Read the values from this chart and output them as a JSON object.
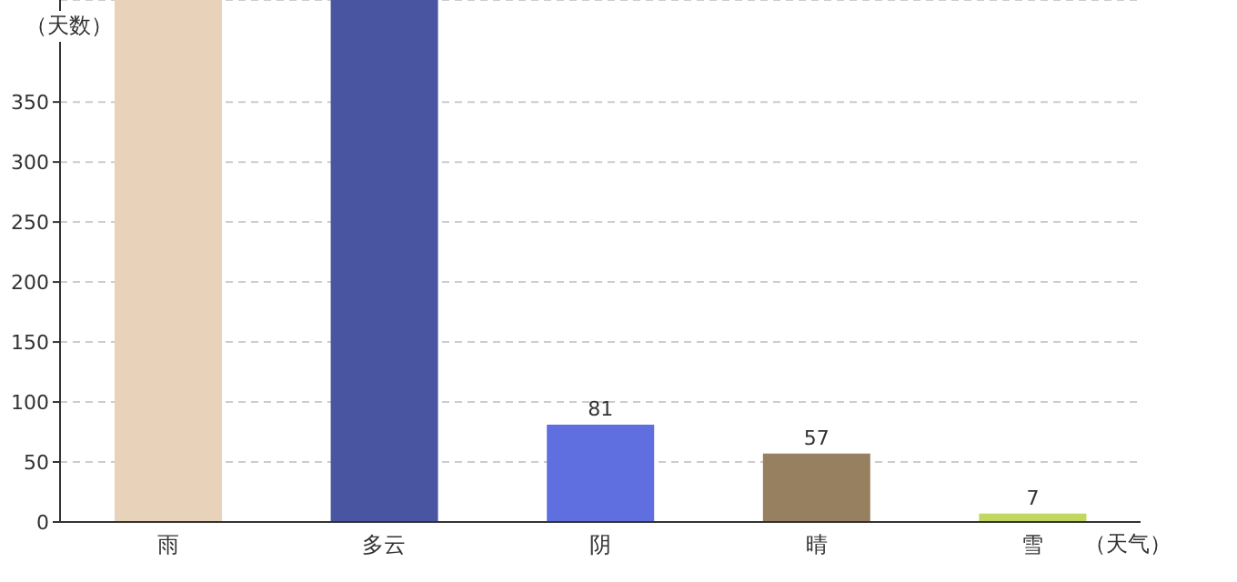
{
  "chart_data": {
    "type": "bar",
    "xlabel": "（天气）",
    "ylabel": "（天数）",
    "categories": [
      "雨",
      "多云",
      "阴",
      "晴",
      "雪"
    ],
    "values": [
      435,
      435,
      81,
      57,
      7
    ],
    "colors": [
      "#e8d3ba",
      "#4a55a2",
      "#5f6fe0",
      "#978060",
      "#c0d860"
    ],
    "value_labels": [
      null,
      null,
      "81",
      "57",
      "7"
    ],
    "ylim": [
      0,
      435
    ],
    "yticks": [
      0,
      50,
      100,
      150,
      200,
      250,
      300,
      350
    ],
    "grid": "y"
  }
}
